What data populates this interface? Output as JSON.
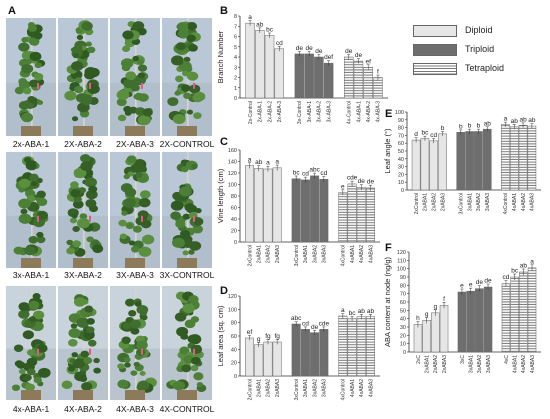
{
  "panels": {
    "A": "A",
    "B": "B",
    "C": "C",
    "D": "D",
    "E": "E",
    "F": "F"
  },
  "photo_rows": [
    {
      "captions": [
        "2x-ABA-1",
        "2X-ABA-2",
        "2X-ABA-3",
        "2X-CONTROL"
      ]
    },
    {
      "captions": [
        "3x-ABA-1",
        "3X-ABA-2",
        "3X-ABA-3",
        "3X-CONTROL"
      ]
    },
    {
      "captions": [
        "4x-ABA-1",
        "4X-ABA-2",
        "4X-ABA-3",
        "4X-CONTROL"
      ]
    }
  ],
  "legend": [
    {
      "label": "Diploid",
      "fill": "#e6e6e6"
    },
    {
      "label": "Triploid",
      "fill": "#6e6e6e"
    },
    {
      "label": "Tetraploid",
      "fill": "stripes"
    }
  ],
  "colors": {
    "diploid": "#e6e6e6",
    "triploid": "#6e6e6e",
    "tetraploid_bg": "#ffffff",
    "stripe": "#777777",
    "photo_bg": "#b9c7d6",
    "foliage": "#3f6e2e"
  },
  "chart_data": [
    {
      "panel": "B",
      "type": "bar",
      "ylabel": "Branch Number",
      "ylim": [
        0,
        8
      ],
      "yticks": [
        "0",
        "1",
        "2",
        "3",
        "4",
        "5",
        "6",
        "7",
        "8"
      ],
      "categories": [
        "2x-Control",
        "2x-ABA-1",
        "2x-ABA-2",
        "2x-ABA-3",
        "3x-Control",
        "3x-ABA-1",
        "3x-ABA-2",
        "3x-ABA-3",
        "4x-Control",
        "4x-ABA-1",
        "4x-ABA-2",
        "4x-ABA-3"
      ],
      "values": [
        7.3,
        6.6,
        6.1,
        4.8,
        4.3,
        4.3,
        4.0,
        3.4,
        4.0,
        3.6,
        3.0,
        2.0
      ],
      "letters": [
        "a",
        "ab",
        "bc",
        "cd",
        "de",
        "de",
        "de",
        "def",
        "de",
        "de",
        "ef",
        "f"
      ]
    },
    {
      "panel": "C",
      "type": "bar",
      "ylabel": "Vine length (cm)",
      "ylim": [
        0,
        160
      ],
      "yticks": [
        "0",
        "20",
        "40",
        "60",
        "80",
        "100",
        "120",
        "140",
        "160"
      ],
      "categories": [
        "2xControl",
        "2xABA1",
        "2xABA2",
        "2xABA3",
        "3xControl",
        "3xABA1",
        "3xABA2",
        "3xABA3",
        "4xControl",
        "4xABA1",
        "4xABA2",
        "4xABA3"
      ],
      "values": [
        133,
        128,
        127,
        129,
        110,
        108,
        115,
        109,
        86,
        101,
        95,
        94
      ],
      "letters": [
        "a",
        "ab",
        "a",
        "a",
        "bc",
        "cd",
        "abc",
        "cd",
        "e",
        "cde",
        "de",
        "de"
      ]
    },
    {
      "panel": "D",
      "type": "bar",
      "ylabel": "Leaf area (sq. cm)",
      "ylim": [
        0,
        120
      ],
      "yticks": [
        "0",
        "20",
        "40",
        "60",
        "80",
        "100",
        "120"
      ],
      "categories": [
        "2xControl",
        "2xABA1",
        "2xABA2",
        "2xABA3",
        "3xControl",
        "3xABA1",
        "3xABA2",
        "3xABA3",
        "4xControl",
        "4xABA1",
        "4xABA2",
        "4xABA3"
      ],
      "values": [
        57,
        47,
        51,
        51,
        78,
        70,
        65,
        70,
        90,
        86,
        89,
        89
      ],
      "letters": [
        "ef",
        "g",
        "fg",
        "fg",
        "abc",
        "cd",
        "de",
        "cde",
        "a",
        "bc",
        "ab",
        "ab"
      ]
    },
    {
      "panel": "E",
      "type": "bar",
      "ylabel": "Leaf angle (°)",
      "ylim": [
        0,
        100
      ],
      "yticks": [
        "0",
        "10",
        "20",
        "30",
        "40",
        "50",
        "60",
        "70",
        "80",
        "90",
        "100"
      ],
      "categories": [
        "2xControl",
        "2xABA1",
        "2xABA2",
        "2xABA3",
        "3xControl",
        "3xABA1",
        "3xABA2",
        "3xABA3",
        "4xControl",
        "4xABA1",
        "4xABA2",
        "4xABA3"
      ],
      "values": [
        64,
        66,
        63,
        72,
        74,
        75,
        75,
        78,
        84,
        81,
        83,
        82
      ],
      "letters": [
        "d",
        "bc",
        "cd",
        "b",
        "b",
        "b",
        "b",
        "ab",
        "a",
        "ab",
        "ab",
        "ab"
      ]
    },
    {
      "panel": "F",
      "type": "bar",
      "ylabel": "ABA content at node (ng/g)",
      "ylim": [
        0,
        120
      ],
      "yticks": [
        "0",
        "10",
        "20",
        "30",
        "40",
        "50",
        "60",
        "70",
        "80",
        "90",
        "100",
        "110",
        "120"
      ],
      "categories": [
        "2xC",
        "2xABA1",
        "2xABA2",
        "2xABA3",
        "3xC",
        "3xABA1",
        "3xABA2",
        "3xABA3",
        "4xC",
        "4xABA1",
        "4xABA2",
        "4xABA3"
      ],
      "values": [
        33,
        38,
        47,
        56,
        72,
        73,
        76,
        78,
        82,
        90,
        96,
        101
      ],
      "letters": [
        "h",
        "g",
        "g",
        "f",
        "e",
        "e",
        "de",
        "de",
        "cd",
        "bc",
        "ab",
        "a"
      ]
    }
  ]
}
